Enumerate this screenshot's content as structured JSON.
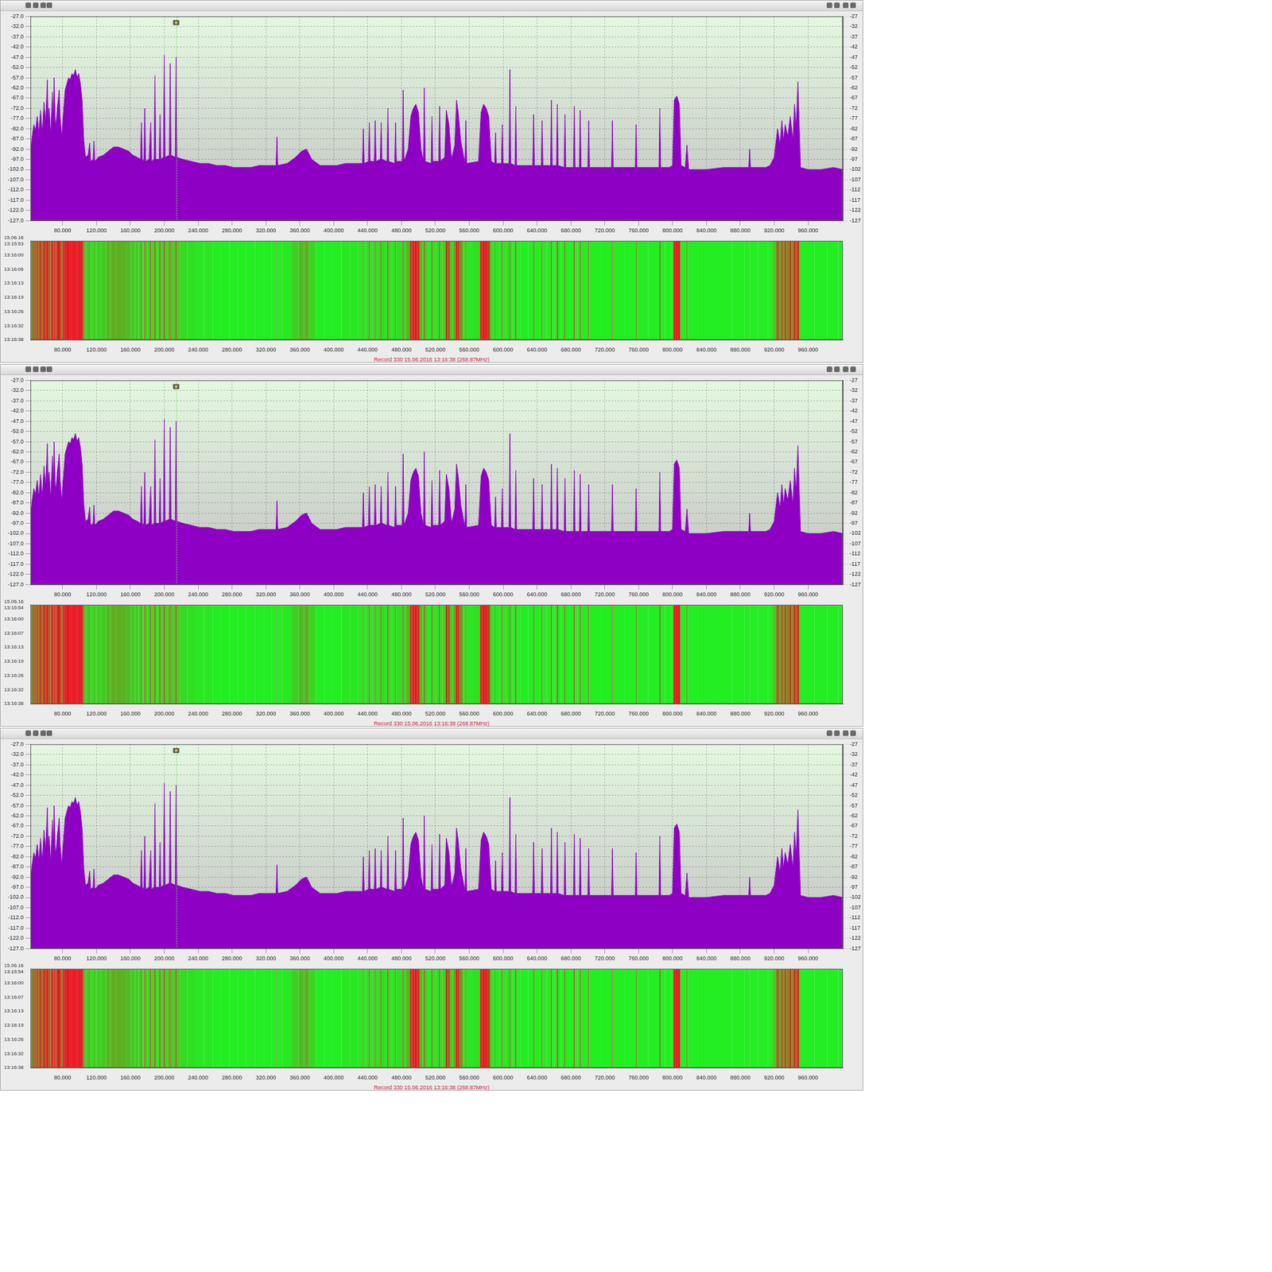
{
  "chart_data": {
    "type": "area",
    "color": "#8e00c4",
    "grid": true,
    "x": [
      42,
      44,
      46,
      48,
      50,
      52,
      54,
      56,
      58,
      60,
      62,
      63,
      64,
      66,
      68,
      69,
      70,
      71,
      72,
      74,
      76,
      77,
      79,
      81,
      83,
      85,
      87,
      89,
      91,
      93,
      95,
      97,
      99,
      101,
      103,
      105,
      107,
      110,
      112,
      113,
      116,
      117,
      118,
      122,
      128,
      134,
      140,
      146,
      152,
      158,
      163,
      168,
      172,
      173,
      174,
      176,
      177,
      178,
      182,
      184,
      185,
      188,
      189,
      190,
      194,
      195,
      196,
      199,
      200,
      201,
      206,
      207,
      208,
      213,
      214,
      215,
      222,
      232,
      242,
      252,
      262,
      272,
      282,
      292,
      302,
      312,
      322,
      332,
      333,
      334,
      345,
      355,
      362,
      368,
      374,
      384,
      394,
      404,
      414,
      424,
      434,
      435,
      436,
      441,
      442,
      443,
      448,
      449,
      450,
      455,
      456,
      457,
      463,
      464,
      465,
      472,
      473,
      474,
      481,
      482,
      483,
      488,
      491,
      494,
      497,
      500,
      503,
      506,
      507,
      508,
      515,
      516,
      517,
      524,
      525,
      526,
      531,
      533,
      536,
      539,
      543,
      545,
      547,
      550,
      555,
      556,
      557,
      571,
      574,
      577,
      580,
      583,
      586,
      590,
      591,
      592,
      598,
      599,
      600,
      607,
      608,
      609,
      614,
      615,
      616,
      624,
      635,
      636,
      637,
      645,
      646,
      647,
      656,
      657,
      658,
      663,
      664,
      665,
      672,
      673,
      674,
      683,
      684,
      685,
      690,
      691,
      692,
      700,
      701,
      702,
      728,
      729,
      730,
      756,
      757,
      758,
      784,
      785,
      786,
      796,
      800,
      802,
      805,
      808,
      810,
      815,
      817,
      819,
      840,
      860,
      880,
      890,
      891,
      892,
      910,
      915,
      920,
      924,
      927,
      929,
      931,
      933,
      936,
      939,
      942,
      944,
      946,
      948,
      951,
      960,
      975,
      990,
      1001
    ],
    "values": [
      -95,
      -86,
      -80,
      -83,
      -76,
      -84,
      -73,
      -85,
      -69,
      -79,
      -58,
      -80,
      -72,
      -85,
      -64,
      -78,
      -57,
      -76,
      -82,
      -71,
      -63,
      -76,
      -86,
      -74,
      -63,
      -60,
      -57,
      -58,
      -55,
      -56,
      -53,
      -57,
      -55,
      -60,
      -68,
      -88,
      -96,
      -95,
      -89,
      -98,
      -97,
      -88,
      -98,
      -96,
      -95,
      -93,
      -91,
      -91,
      -92,
      -93,
      -95,
      -96,
      -97,
      -79,
      -97,
      -98,
      -72,
      -98,
      -97,
      -79,
      -98,
      -97,
      -56,
      -97,
      -97,
      -75,
      -97,
      -96,
      -46,
      -96,
      -95,
      -50,
      -95,
      -96,
      -47,
      -96,
      -97,
      -98,
      -99,
      -99,
      -100,
      -100,
      -101,
      -101,
      -101,
      -100,
      -100,
      -100,
      -86,
      -100,
      -99,
      -96,
      -93,
      -92,
      -97,
      -100,
      -100,
      -100,
      -99,
      -99,
      -99,
      -82,
      -99,
      -98,
      -79,
      -98,
      -98,
      -78,
      -98,
      -97,
      -79,
      -97,
      -98,
      -72,
      -98,
      -99,
      -79,
      -98,
      -98,
      -63,
      -98,
      -92,
      -76,
      -72,
      -70,
      -74,
      -92,
      -98,
      -62,
      -98,
      -99,
      -76,
      -98,
      -98,
      -71,
      -98,
      -96,
      -73,
      -80,
      -97,
      -90,
      -68,
      -74,
      -88,
      -99,
      -78,
      -99,
      -98,
      -74,
      -70,
      -72,
      -76,
      -98,
      -99,
      -84,
      -99,
      -99,
      -80,
      -99,
      -99,
      -53,
      -99,
      -100,
      -71,
      -100,
      -100,
      -100,
      -75,
      -100,
      -100,
      -78,
      -100,
      -100,
      -68,
      -100,
      -100,
      -70,
      -100,
      -101,
      -75,
      -101,
      -101,
      -71,
      -101,
      -101,
      -73,
      -101,
      -101,
      -78,
      -101,
      -101,
      -78,
      -101,
      -101,
      -80,
      -101,
      -101,
      -72,
      -101,
      -101,
      -100,
      -68,
      -66,
      -70,
      -100,
      -101,
      -90,
      -102,
      -102,
      -101,
      -101,
      -101,
      -92,
      -101,
      -101,
      -100,
      -96,
      -82,
      -90,
      -78,
      -88,
      -80,
      -86,
      -76,
      -88,
      -70,
      -82,
      -59,
      -101,
      -102,
      -102,
      -101,
      -102
    ],
    "xlim": [
      42,
      1001
    ],
    "xticks": [
      {
        "value": 80,
        "label": "80.000"
      },
      {
        "value": 120,
        "label": "120.000"
      },
      {
        "value": 160,
        "label": "160.000"
      },
      {
        "value": 200,
        "label": "200.000"
      },
      {
        "value": 240,
        "label": "240.000"
      },
      {
        "value": 280,
        "label": "280.000"
      },
      {
        "value": 320,
        "label": "320.000"
      },
      {
        "value": 360,
        "label": "360.000"
      },
      {
        "value": 400,
        "label": "400.000"
      },
      {
        "value": 440,
        "label": "440.000"
      },
      {
        "value": 480,
        "label": "480.000"
      },
      {
        "value": 520,
        "label": "520.000"
      },
      {
        "value": 560,
        "label": "560.000"
      },
      {
        "value": 600,
        "label": "600.000"
      },
      {
        "value": 640,
        "label": "640.000"
      },
      {
        "value": 680,
        "label": "680.000"
      },
      {
        "value": 720,
        "label": "720.000"
      },
      {
        "value": 760,
        "label": "760.000"
      },
      {
        "value": 800,
        "label": "800.000"
      },
      {
        "value": 840,
        "label": "840.000"
      },
      {
        "value": 880,
        "label": "880.000"
      },
      {
        "value": 920,
        "label": "920.000"
      },
      {
        "value": 960,
        "label": "960.000"
      }
    ],
    "ylim": [
      -127,
      -27
    ],
    "yticks": [
      {
        "value": -27,
        "label": "-27.0"
      },
      {
        "value": -32,
        "label": "-32.0"
      },
      {
        "value": -37,
        "label": "-37.0"
      },
      {
        "value": -42,
        "label": "-42.0"
      },
      {
        "value": -47,
        "label": "-47.0"
      },
      {
        "value": -52,
        "label": "-52.0"
      },
      {
        "value": -57,
        "label": "-57.0"
      },
      {
        "value": -62,
        "label": "-62.0"
      },
      {
        "value": -67,
        "label": "-67.0"
      },
      {
        "value": -72,
        "label": "-72.0"
      },
      {
        "value": -77,
        "label": "-77.0"
      },
      {
        "value": -82,
        "label": "-82.0"
      },
      {
        "value": -87,
        "label": "-87.0"
      },
      {
        "value": -92,
        "label": "-92.0"
      },
      {
        "value": -97,
        "label": "-97.0"
      },
      {
        "value": -102,
        "label": "-102.0"
      },
      {
        "value": -107,
        "label": "-107.0"
      },
      {
        "value": -112,
        "label": "-112.0"
      },
      {
        "value": -117,
        "label": "-117.0"
      },
      {
        "value": -122,
        "label": "-122.0"
      },
      {
        "value": -127,
        "label": "-127.0"
      }
    ],
    "y2lim": [
      -127,
      -27
    ],
    "y2ticks": [
      -27,
      -32,
      -37,
      -42,
      -47,
      -52,
      -57,
      -62,
      -67,
      -72,
      -77,
      -82,
      -87,
      -92,
      -97,
      -102,
      -107,
      -112,
      -117,
      -122,
      -127
    ],
    "cursor": 214,
    "footer": "Record 330 15.06.2016 13:16:38 (268.87MHz)",
    "waterfall": {
      "color_range": [
        -100,
        -70
      ],
      "colors": [
        "#22ee22",
        "#e8141e"
      ]
    },
    "panels": [
      {
        "time_labels": [
          "15.06.16 13:15:53",
          "13:16:00",
          "13:16:06",
          "13:16:13",
          "13:16:19",
          "13:16:26",
          "13:16:32",
          "13:16:38"
        ]
      },
      {
        "time_labels": [
          "15.06.16 13:15:54",
          "13:16:00",
          "13:16:07",
          "13:16:13",
          "13:16:19",
          "13:16:26",
          "13:16:32",
          "13:16:38"
        ]
      },
      {
        "time_labels": [
          "15.06.16 13:15:54",
          "13:16:00",
          "13:16:07",
          "13:16:13",
          "13:16:19",
          "13:16:26",
          "13:16:32",
          "13:16:38"
        ]
      }
    ]
  }
}
